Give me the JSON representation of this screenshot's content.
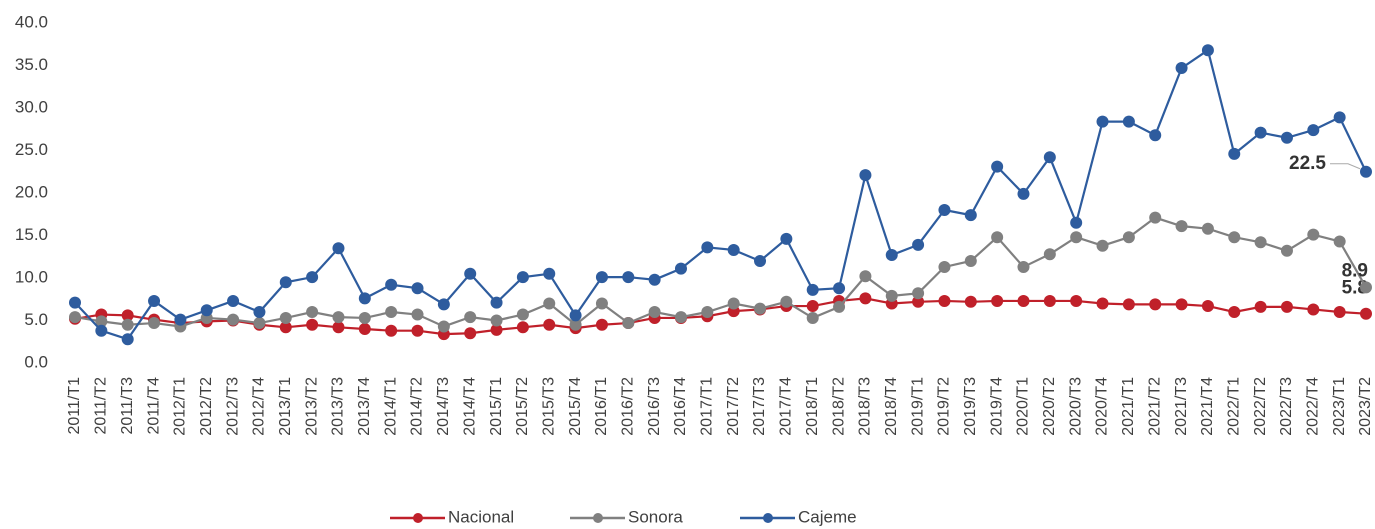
{
  "chart_data": {
    "type": "line",
    "categories": [
      "2011/T1",
      "2011/T2",
      "2011/T3",
      "2011/T4",
      "2012/T1",
      "2012/T2",
      "2012/T3",
      "2012/T4",
      "2013/T1",
      "2013/T2",
      "2013/T3",
      "2013/T4",
      "2014/T1",
      "2014/T2",
      "2014/T3",
      "2014/T4",
      "2015/T1",
      "2015/T2",
      "2015/T3",
      "2015/T4",
      "2016/T1",
      "2016/T2",
      "2016/T3",
      "2016/T4",
      "2017/T1",
      "2017/T2",
      "2017/T3",
      "2017/T4",
      "2018/T1",
      "2018/T2",
      "2018/T3",
      "2018/T4",
      "2019/T1",
      "2019/T2",
      "2019/T3",
      "2019/T4",
      "2020/T1",
      "2020/T2",
      "2020/T3",
      "2020/T4",
      "2021/T1",
      "2021/T2",
      "2021/T3",
      "2021/T4",
      "2022/T1",
      "2022/T2",
      "2022/T3",
      "2022/T4",
      "2023/T1",
      "2023/T2"
    ],
    "series": [
      {
        "name": "Nacional",
        "color": "#c0202a",
        "values": [
          5.2,
          5.7,
          5.6,
          5.1,
          4.7,
          4.9,
          5.0,
          4.5,
          4.2,
          4.5,
          4.2,
          4.0,
          3.8,
          3.8,
          3.4,
          3.5,
          3.9,
          4.2,
          4.5,
          4.1,
          4.5,
          4.7,
          5.3,
          5.3,
          5.5,
          6.1,
          6.3,
          6.7,
          6.7,
          7.3,
          7.6,
          7.0,
          7.2,
          7.3,
          7.2,
          7.3,
          7.3,
          7.3,
          7.3,
          7.0,
          6.9,
          6.9,
          6.9,
          6.7,
          6.0,
          6.6,
          6.6,
          6.3,
          6.0,
          5.8
        ],
        "value_labels": [
          null,
          null,
          null,
          null,
          null,
          null,
          null,
          null,
          null,
          null,
          null,
          null,
          null,
          null,
          null,
          null,
          null,
          null,
          null,
          null,
          null,
          null,
          null,
          null,
          null,
          null,
          null,
          null,
          null,
          null,
          null,
          null,
          null,
          null,
          null,
          null,
          null,
          null,
          null,
          null,
          null,
          null,
          null,
          null,
          null,
          null,
          null,
          null,
          null,
          "5.8"
        ]
      },
      {
        "name": "Sonora",
        "color": "#808080",
        "values": [
          5.4,
          4.9,
          4.5,
          4.7,
          4.3,
          5.3,
          5.1,
          4.7,
          5.3,
          6.0,
          5.4,
          5.3,
          6.0,
          5.7,
          4.3,
          5.4,
          5.0,
          5.7,
          7.0,
          4.5,
          7.0,
          4.7,
          6.0,
          5.4,
          6.0,
          7.0,
          6.4,
          7.2,
          5.3,
          6.6,
          10.2,
          7.9,
          8.2,
          11.3,
          12.0,
          14.8,
          11.3,
          12.8,
          14.8,
          13.8,
          14.8,
          17.1,
          16.1,
          15.8,
          14.8,
          14.2,
          13.2,
          15.1,
          14.3,
          8.9
        ],
        "value_labels": [
          null,
          null,
          null,
          null,
          null,
          null,
          null,
          null,
          null,
          null,
          null,
          null,
          null,
          null,
          null,
          null,
          null,
          null,
          null,
          null,
          null,
          null,
          null,
          null,
          null,
          null,
          null,
          null,
          null,
          null,
          null,
          null,
          null,
          null,
          null,
          null,
          null,
          null,
          null,
          null,
          null,
          null,
          null,
          null,
          null,
          null,
          null,
          null,
          null,
          "8.9"
        ]
      },
      {
        "name": "Cajeme",
        "color": "#2e5c9e",
        "values": [
          7.1,
          3.8,
          2.8,
          7.3,
          5.1,
          6.2,
          7.3,
          6.0,
          9.5,
          10.1,
          13.5,
          7.6,
          9.2,
          8.8,
          6.9,
          10.5,
          7.1,
          10.1,
          10.5,
          5.6,
          10.1,
          10.1,
          9.8,
          11.1,
          13.6,
          13.3,
          12.0,
          14.6,
          8.6,
          8.8,
          22.1,
          12.7,
          13.9,
          18.0,
          17.4,
          23.1,
          19.9,
          24.2,
          16.5,
          28.4,
          28.4,
          26.8,
          34.7,
          36.8,
          24.6,
          27.1,
          26.5,
          27.4,
          28.9,
          22.5
        ],
        "value_labels": [
          null,
          null,
          null,
          null,
          null,
          null,
          null,
          null,
          null,
          null,
          null,
          null,
          null,
          null,
          null,
          null,
          null,
          null,
          null,
          null,
          null,
          null,
          null,
          null,
          null,
          null,
          null,
          null,
          null,
          null,
          null,
          null,
          null,
          null,
          null,
          null,
          null,
          null,
          null,
          null,
          null,
          null,
          null,
          null,
          null,
          null,
          null,
          null,
          null,
          "22.5"
        ]
      }
    ],
    "ylim": [
      0,
      40
    ],
    "yticks": [
      {
        "value": 0,
        "label": "0.0"
      },
      {
        "value": 5,
        "label": "5.0"
      },
      {
        "value": 10,
        "label": "10.0"
      },
      {
        "value": 15,
        "label": "15.0"
      },
      {
        "value": 20,
        "label": "20.0"
      },
      {
        "value": 25,
        "label": "25.0"
      },
      {
        "value": 30,
        "label": "30.0"
      },
      {
        "value": 35,
        "label": "35.0"
      },
      {
        "value": 40,
        "label": "40.0"
      }
    ],
    "grid": false,
    "legend": "bottom"
  }
}
